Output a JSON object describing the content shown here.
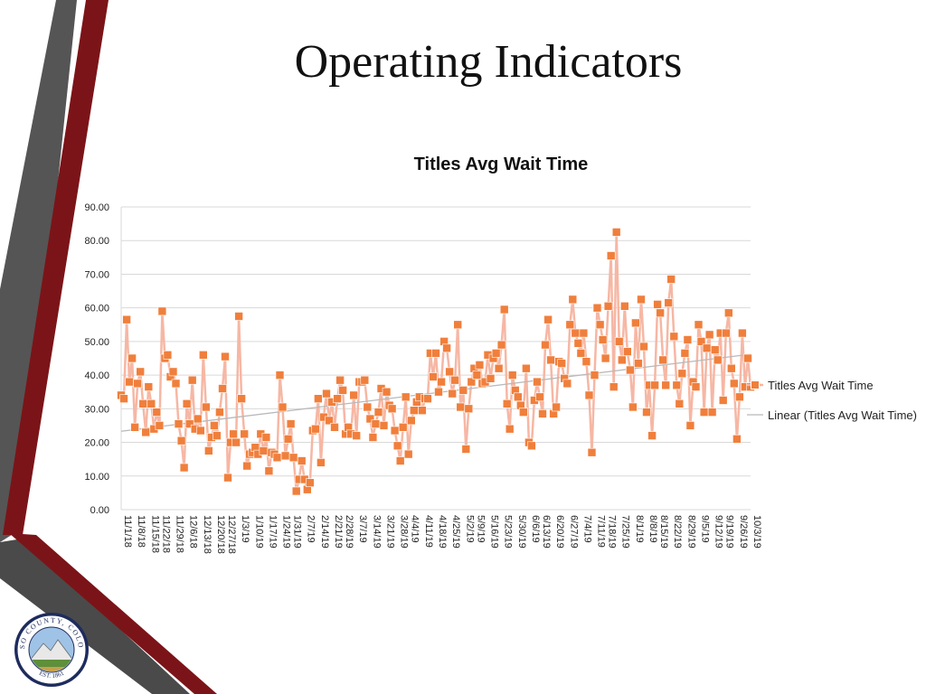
{
  "slide": {
    "title": "Operating Indicators",
    "seal": {
      "top_text": "EL PASO COUNTY, COLORADO",
      "bottom_text": "EST. 1861"
    }
  },
  "colors": {
    "series_line": "#f6b7a4",
    "marker_fill": "#f07f3c",
    "marker_stroke": "#ffffff",
    "trend": "#b9b9b9",
    "grid": "#d9d9d9",
    "deco_red": "#7b1418",
    "deco_gray": "#555555"
  },
  "chart_data": {
    "type": "line",
    "title": "Titles Avg Wait Time",
    "xlabel": "",
    "ylabel": "",
    "ylim": [
      0,
      90
    ],
    "yticks": [
      "0.00",
      "10.00",
      "20.00",
      "30.00",
      "40.00",
      "50.00",
      "60.00",
      "70.00",
      "80.00",
      "90.00"
    ],
    "x_tick_labels": [
      "11/1/18",
      "11/8/18",
      "11/15/18",
      "11/22/18",
      "11/29/18",
      "12/6/18",
      "12/13/18",
      "12/20/18",
      "12/27/18",
      "1/3/19",
      "1/10/19",
      "1/17/19",
      "1/24/19",
      "1/31/19",
      "2/7/19",
      "2/14/19",
      "2/21/19",
      "2/28/19",
      "3/7/19",
      "3/14/19",
      "3/21/19",
      "3/28/19",
      "4/4/19",
      "4/11/19",
      "4/18/19",
      "4/25/19",
      "5/2/19",
      "5/9/19",
      "5/16/19",
      "5/23/19",
      "5/30/19",
      "6/6/19",
      "6/13/19",
      "6/20/19",
      "6/27/19",
      "7/4/19",
      "7/11/19",
      "7/18/19",
      "7/25/19",
      "8/1/19",
      "8/8/19",
      "8/15/19",
      "8/22/19",
      "8/29/19",
      "9/5/19",
      "9/12/19",
      "9/19/19",
      "9/26/19",
      "10/3/19"
    ],
    "legend": {
      "series": "Titles Avg Wait Time",
      "trend": "Linear (Titles Avg Wait Time)",
      "position": "right"
    },
    "series": [
      {
        "name": "Titles Avg Wait Time",
        "values": [
          34,
          33,
          56.5,
          38,
          45,
          24.5,
          37.5,
          41,
          31.5,
          23,
          36.5,
          31.5,
          24,
          29,
          25,
          59,
          45,
          46,
          39.5,
          41,
          37.5,
          25.5,
          20.5,
          12.5,
          31.5,
          25.5,
          38.5,
          24,
          27,
          23.5,
          46,
          30.5,
          17.5,
          21.5,
          25,
          22,
          29,
          36,
          45.5,
          9.5,
          20,
          22.5,
          20,
          57.5,
          33,
          22.5,
          13,
          16.5,
          17,
          18.5,
          16.5,
          22.5,
          17.5,
          21.5,
          11.5,
          17,
          16.5,
          15.5,
          40,
          30.5,
          16,
          21,
          25.5,
          15.5,
          5.5,
          9,
          14.5,
          9,
          6,
          8,
          23.5,
          24,
          33,
          14,
          27.5,
          34.5,
          26.5,
          32,
          24.5,
          33,
          38.5,
          35.5,
          22.5,
          24.5,
          22.5,
          34,
          22,
          38,
          38,
          38.5,
          30.5,
          27,
          21.5,
          25.5,
          29,
          36,
          25,
          35,
          31,
          30,
          23.5,
          19,
          14.5,
          24.5,
          33.5,
          16.5,
          26.5,
          29.5,
          32,
          33.5,
          29.5,
          33,
          33,
          46.5,
          39.5,
          46.5,
          35,
          38,
          50,
          48,
          41,
          34.5,
          38.5,
          55,
          30.5,
          35.5,
          18,
          30,
          38,
          42,
          40,
          43,
          37.5,
          38,
          46,
          39,
          45,
          46.5,
          42,
          49,
          59.5,
          31.5,
          24,
          40,
          35.5,
          33.5,
          31,
          29,
          42,
          20,
          19,
          32.5,
          38,
          33.5,
          28.5,
          49,
          56.5,
          44.5,
          28.5,
          30.5,
          44,
          43.5,
          39,
          37.5,
          55,
          62.5,
          52.5,
          49.5,
          46.5,
          52.5,
          44,
          34,
          17,
          40,
          60,
          55,
          50.5,
          45,
          60.5,
          75.5,
          36.5,
          82.5,
          50,
          44.5,
          60.5,
          47,
          41.5,
          30.5,
          55.5,
          43.5,
          62.5,
          48.5,
          29,
          37,
          22,
          37,
          61,
          58.5,
          44.5,
          37,
          61.5,
          68.5,
          51.5,
          37,
          31.5,
          40.5,
          46.5,
          50.5,
          25,
          38,
          36.5,
          55,
          50,
          29,
          48,
          52,
          29,
          47.5,
          44.5,
          52.5,
          32.5,
          52.5,
          58.5,
          42,
          37.5,
          21,
          33.5,
          52.5,
          36.5,
          45,
          36.5
        ]
      }
    ],
    "trend": {
      "type": "linear",
      "start": 23.3,
      "end": 46.2
    }
  }
}
